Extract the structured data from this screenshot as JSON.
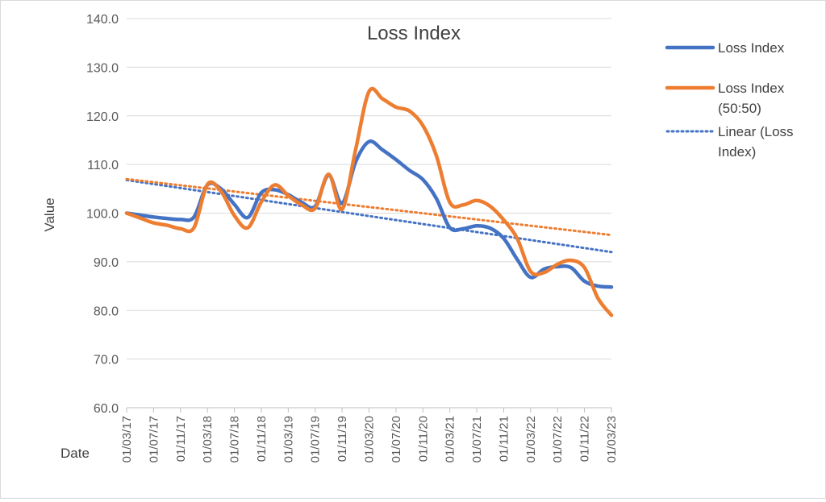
{
  "chart_data": {
    "type": "line",
    "title": "Loss Index",
    "xlabel": "Date",
    "ylabel": "Value",
    "ylim": [
      60,
      140
    ],
    "y_ticks": [
      "60.0",
      "70.0",
      "80.0",
      "90.0",
      "100.0",
      "110.0",
      "120.0",
      "130.0",
      "140.0"
    ],
    "x_ticks": [
      "01/03/17",
      "01/07/17",
      "01/11/17",
      "01/03/18",
      "01/07/18",
      "01/11/18",
      "01/03/19",
      "01/07/19",
      "01/11/19",
      "01/03/20",
      "01/07/20",
      "01/11/20",
      "01/03/21",
      "01/07/21",
      "01/11/21",
      "01/03/22",
      "01/07/22",
      "01/11/22",
      "01/03/23"
    ],
    "grid": "horizontal",
    "legend_position": "right",
    "series": [
      {
        "name": "Loss Index",
        "color": "#4472C4",
        "style": "solid",
        "x": [
          "01/03/17",
          "01/05/17",
          "01/07/17",
          "01/09/17",
          "01/11/17",
          "01/01/18",
          "01/03/18",
          "01/05/18",
          "01/07/18",
          "01/09/18",
          "01/11/18",
          "01/01/19",
          "01/03/19",
          "01/05/19",
          "01/07/19",
          "01/09/19",
          "01/11/19",
          "01/01/20",
          "01/03/20",
          "01/05/20",
          "01/07/20",
          "01/09/20",
          "01/11/20",
          "01/01/21",
          "01/03/21",
          "01/05/21",
          "01/07/21",
          "01/09/21",
          "01/11/21",
          "01/01/22",
          "01/03/22",
          "01/05/22",
          "01/07/22",
          "01/09/22",
          "01/11/22",
          "01/01/23",
          "01/03/23"
        ],
        "values": [
          100.0,
          99.6,
          99.2,
          98.9,
          98.7,
          99.2,
          105.8,
          105.0,
          101.8,
          99.1,
          104.2,
          104.8,
          103.8,
          102.2,
          101.4,
          107.8,
          102.0,
          110.5,
          114.7,
          113.0,
          111.0,
          108.8,
          106.9,
          103.0,
          97.0,
          96.8,
          97.4,
          96.9,
          94.8,
          90.5,
          86.8,
          88.5,
          89.0,
          88.8,
          86.0,
          85.0,
          84.8
        ]
      },
      {
        "name": "Loss Index (50:50)",
        "color": "#ED7D31",
        "style": "solid",
        "x": [
          "01/03/17",
          "01/05/17",
          "01/07/17",
          "01/09/17",
          "01/11/17",
          "01/01/18",
          "01/03/18",
          "01/05/18",
          "01/07/18",
          "01/09/18",
          "01/11/18",
          "01/01/19",
          "01/03/19",
          "01/05/19",
          "01/07/19",
          "01/09/19",
          "01/11/19",
          "01/01/20",
          "01/03/20",
          "01/05/20",
          "01/07/20",
          "01/09/20",
          "01/11/20",
          "01/01/21",
          "01/03/21",
          "01/05/21",
          "01/07/21",
          "01/09/21",
          "01/11/21",
          "01/01/22",
          "01/03/22",
          "01/05/22",
          "01/07/22",
          "01/09/22",
          "01/11/22",
          "01/01/23",
          "01/03/23"
        ],
        "values": [
          100.0,
          99.0,
          98.0,
          97.5,
          96.8,
          97.0,
          105.9,
          104.5,
          99.5,
          97.0,
          102.3,
          105.8,
          103.6,
          101.7,
          101.0,
          108.0,
          100.8,
          113.0,
          125.0,
          123.5,
          121.8,
          121.0,
          118.0,
          111.8,
          102.2,
          101.7,
          102.6,
          101.4,
          98.6,
          94.8,
          88.0,
          87.8,
          89.5,
          90.3,
          88.8,
          82.5,
          79.0
        ]
      },
      {
        "name": "Linear (Loss Index)",
        "color": "#4472C4",
        "style": "dotted",
        "x": [
          "01/03/17",
          "01/03/23"
        ],
        "values": [
          106.8,
          92.0
        ]
      },
      {
        "color": "#ED7D31",
        "style": "dotted",
        "x": [
          "01/03/17",
          "01/03/23"
        ],
        "values": [
          107.0,
          95.5
        ]
      }
    ]
  },
  "legend": [
    {
      "lines": [
        "Loss Index"
      ],
      "color": "#4472C4",
      "style": "solid"
    },
    {
      "lines": [
        "Loss Index",
        "(50:50)"
      ],
      "color": "#ED7D31",
      "style": "solid"
    },
    {
      "lines": [
        "Linear (Loss",
        "Index)"
      ],
      "color": "#4472C4",
      "style": "dotted"
    }
  ]
}
